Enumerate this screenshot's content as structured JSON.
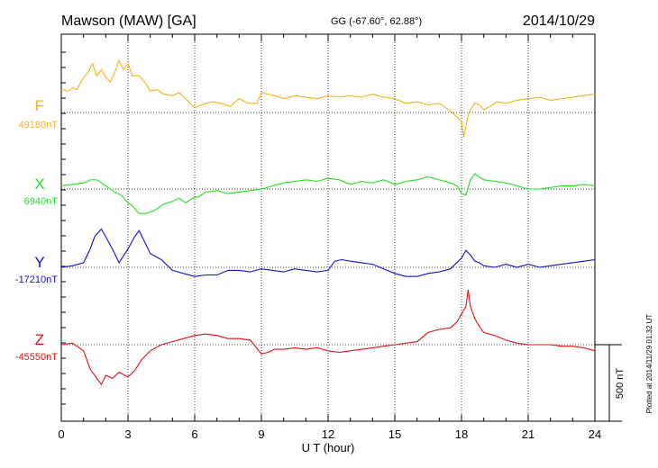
{
  "header": {
    "station": "Mawson (MAW)  [GA]",
    "coords": "GG (-67.60°,  62.88°)",
    "date": "2014/10/29"
  },
  "footer": {
    "plotted_note": "Plotted at 2014/11/29 01:32 UT"
  },
  "colors": {
    "F": "#f2b21b",
    "X": "#22e022",
    "Y": "#1010d0",
    "Z": "#e01010"
  },
  "chart_data": {
    "type": "line",
    "title": "Mawson (MAW)  [GA]",
    "xlabel": "U T (hour)",
    "ylabel": "",
    "xlim": [
      0,
      24
    ],
    "xticks": [
      0,
      3,
      6,
      9,
      12,
      15,
      18,
      21,
      24
    ],
    "xtick_labels": [
      "0",
      "3",
      "6",
      "9",
      "12",
      "15",
      "18",
      "21",
      "24"
    ],
    "scale_bar_label": "500 nT",
    "scale_bar_nT": 500,
    "grid": true,
    "series": [
      {
        "name": "F",
        "baseline_label": "49180nT",
        "baseline_nT": 49180,
        "x": [
          0,
          0.3,
          0.5,
          0.7,
          1,
          1.2,
          1.4,
          1.6,
          1.8,
          2,
          2.2,
          2.4,
          2.6,
          2.8,
          3,
          3.2,
          3.5,
          3.8,
          4,
          4.3,
          4.6,
          5,
          5.3,
          5.6,
          5.8,
          6,
          6.3,
          6.8,
          7.2,
          7.6,
          8,
          8.4,
          8.8,
          9,
          9.3,
          9.6,
          10,
          10.5,
          11,
          11.5,
          12,
          12.5,
          13,
          13.5,
          14,
          14.5,
          15,
          15.5,
          16,
          16.5,
          17,
          17.5,
          17.8,
          18,
          18.1,
          18.2,
          18.3,
          18.4,
          18.6,
          18.8,
          19,
          19.3,
          19.6,
          20,
          20.5,
          21,
          21.5,
          22,
          22.5,
          23,
          23.5,
          24
        ],
        "values": [
          150,
          140,
          160,
          150,
          230,
          260,
          320,
          240,
          280,
          230,
          200,
          260,
          340,
          280,
          320,
          240,
          240,
          190,
          140,
          150,
          120,
          110,
          130,
          90,
          60,
          30,
          50,
          70,
          60,
          40,
          90,
          60,
          60,
          130,
          120,
          110,
          90,
          110,
          100,
          90,
          110,
          100,
          110,
          100,
          120,
          100,
          90,
          60,
          70,
          50,
          60,
          10,
          -30,
          -60,
          -160,
          -90,
          -20,
          20,
          60,
          50,
          20,
          40,
          70,
          60,
          80,
          90,
          100,
          80,
          90,
          100,
          110,
          120
        ]
      },
      {
        "name": "X",
        "baseline_label": "6940nT",
        "baseline_nT": 6940,
        "x": [
          0,
          0.5,
          1,
          1.3,
          1.6,
          2,
          2.4,
          2.7,
          3,
          3.2,
          3.5,
          3.8,
          4.2,
          4.6,
          5,
          5.3,
          5.6,
          5.9,
          6.2,
          6.5,
          7,
          7.5,
          8,
          8.5,
          9,
          9.5,
          10,
          10.5,
          11,
          11.5,
          12,
          12.5,
          13,
          13.5,
          14,
          14.5,
          15,
          15.5,
          16,
          16.5,
          17,
          17.5,
          17.8,
          18,
          18.2,
          18.4,
          18.6,
          18.8,
          19,
          19.5,
          20,
          20.5,
          21,
          21.5,
          22,
          22.5,
          23,
          23.5,
          24
        ],
        "values": [
          20,
          30,
          40,
          60,
          60,
          20,
          -20,
          -40,
          -90,
          -110,
          -160,
          -160,
          -140,
          -100,
          -80,
          -60,
          -90,
          -60,
          -50,
          -20,
          -10,
          -30,
          -20,
          -10,
          0,
          20,
          40,
          50,
          60,
          50,
          70,
          60,
          30,
          50,
          40,
          60,
          30,
          50,
          60,
          80,
          60,
          40,
          20,
          -30,
          -40,
          60,
          100,
          80,
          60,
          50,
          40,
          20,
          0,
          0,
          10,
          20,
          20,
          30,
          20
        ]
      },
      {
        "name": "Y",
        "baseline_label": "-17210nT",
        "baseline_nT": -17210,
        "x": [
          0,
          0.5,
          1,
          1.3,
          1.5,
          1.8,
          2,
          2.3,
          2.6,
          3,
          3.3,
          3.5,
          3.7,
          4,
          4.5,
          5,
          5.5,
          6,
          6.5,
          7,
          7.5,
          8,
          8.5,
          9,
          9.5,
          10,
          10.5,
          11,
          11.5,
          12,
          12.3,
          12.6,
          13,
          13.5,
          14,
          14.5,
          15,
          15.5,
          16,
          16.5,
          17,
          17.5,
          18,
          18.2,
          18.4,
          18.6,
          18.8,
          19,
          19.5,
          20,
          20.5,
          21,
          21.5,
          22,
          22.5,
          23,
          23.5,
          24
        ],
        "values": [
          0,
          10,
          30,
          120,
          200,
          250,
          200,
          120,
          30,
          120,
          200,
          240,
          180,
          90,
          50,
          -20,
          -40,
          -60,
          -50,
          -50,
          -20,
          -20,
          -30,
          -10,
          -20,
          -30,
          -10,
          -20,
          -30,
          -20,
          40,
          50,
          40,
          30,
          20,
          -10,
          -40,
          -60,
          -60,
          -40,
          -30,
          -10,
          60,
          110,
          80,
          40,
          30,
          10,
          0,
          20,
          0,
          20,
          0,
          10,
          20,
          30,
          40,
          50
        ]
      },
      {
        "name": "Z",
        "baseline_label": "-45550nT",
        "baseline_nT": -45550,
        "x": [
          0,
          0.5,
          1,
          1.3,
          1.6,
          1.8,
          2,
          2.3,
          2.6,
          3,
          3.3,
          3.6,
          4,
          4.5,
          5,
          5.5,
          6,
          6.5,
          7,
          7.5,
          8,
          8.5,
          9,
          9.3,
          9.6,
          10,
          10.5,
          11,
          11.5,
          12,
          12.5,
          13,
          13.5,
          14,
          14.5,
          15,
          15.5,
          16,
          16.5,
          17,
          17.5,
          17.8,
          18,
          18.2,
          18.3,
          18.4,
          18.6,
          18.8,
          19,
          19.5,
          20,
          20.5,
          21,
          21.5,
          22,
          22.5,
          23,
          23.5,
          24
        ],
        "values": [
          0,
          10,
          -40,
          -160,
          -220,
          -260,
          -200,
          -220,
          -180,
          -210,
          -170,
          -100,
          -40,
          0,
          20,
          40,
          60,
          70,
          60,
          40,
          40,
          30,
          -60,
          -50,
          -30,
          -30,
          -20,
          -30,
          -20,
          -40,
          -50,
          -40,
          -30,
          -20,
          -10,
          0,
          10,
          20,
          80,
          100,
          110,
          150,
          200,
          250,
          360,
          250,
          170,
          120,
          80,
          60,
          30,
          10,
          0,
          0,
          0,
          -10,
          -10,
          -20,
          -40
        ]
      }
    ]
  }
}
